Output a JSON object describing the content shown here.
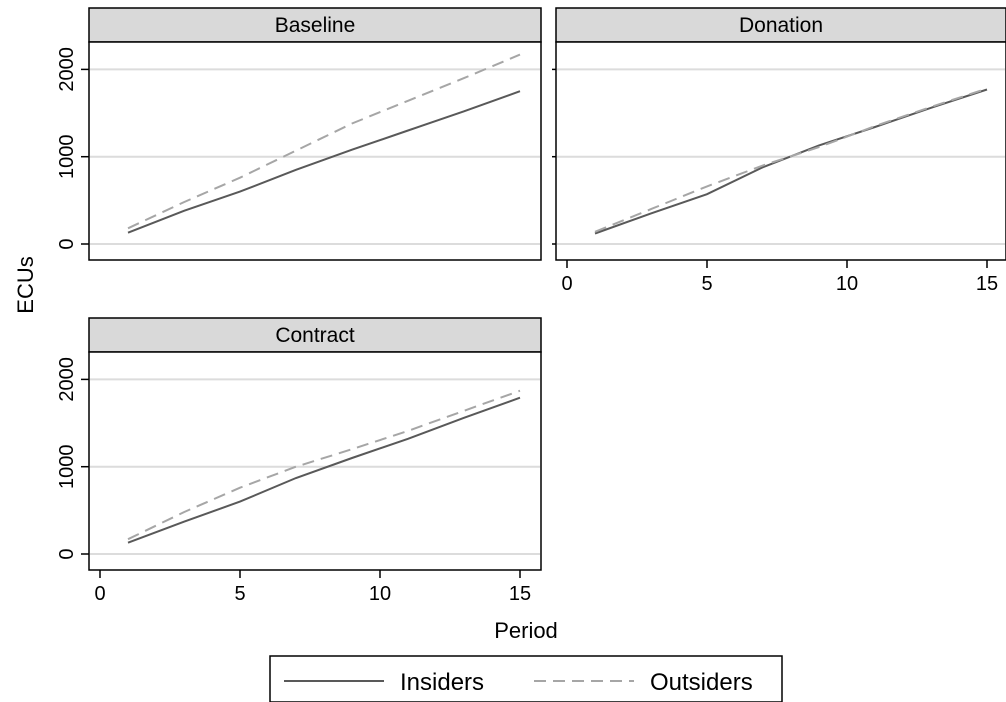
{
  "chart_data": {
    "type": "line",
    "ylabel": "ECUs",
    "xlabel": "Period",
    "xlim": [
      0,
      15
    ],
    "ylim": [
      0,
      2000
    ],
    "xticks": [
      0,
      5,
      10,
      15
    ],
    "yticks": [
      0,
      1000,
      2000
    ],
    "grid": "horizontal",
    "legend_position": "bottom",
    "series_styles": {
      "Insiders": {
        "color": "#595959",
        "dash": "solid"
      },
      "Outsiders": {
        "color": "#a6a6a6",
        "dash": "dashed"
      }
    },
    "panels": [
      {
        "title": "Baseline",
        "series": [
          {
            "name": "Insiders",
            "x": [
              1,
              3,
              5,
              7,
              9,
              11,
              13,
              15
            ],
            "y": [
              130,
              380,
              600,
              850,
              1080,
              1300,
              1520,
              1750
            ]
          },
          {
            "name": "Outsiders",
            "x": [
              1,
              3,
              5,
              7,
              9,
              11,
              13,
              15
            ],
            "y": [
              180,
              480,
              760,
              1070,
              1380,
              1640,
              1900,
              2170
            ]
          }
        ]
      },
      {
        "title": "Donation",
        "series": [
          {
            "name": "Insiders",
            "x": [
              1,
              3,
              5,
              7,
              9,
              11,
              13,
              15
            ],
            "y": [
              120,
              350,
              570,
              880,
              1130,
              1340,
              1560,
              1770
            ]
          },
          {
            "name": "Outsiders",
            "x": [
              1,
              3,
              5,
              7,
              9,
              11,
              13,
              15
            ],
            "y": [
              140,
              400,
              660,
              900,
              1110,
              1350,
              1570,
              1780
            ]
          }
        ]
      },
      {
        "title": "Contract",
        "series": [
          {
            "name": "Insiders",
            "x": [
              1,
              3,
              5,
              7,
              9,
              11,
              13,
              15
            ],
            "y": [
              130,
              370,
              600,
              870,
              1100,
              1320,
              1560,
              1790
            ]
          },
          {
            "name": "Outsiders",
            "x": [
              1,
              3,
              5,
              7,
              9,
              11,
              13,
              15
            ],
            "y": [
              170,
              480,
              760,
              1000,
              1200,
              1410,
              1640,
              1870
            ]
          }
        ]
      }
    ]
  }
}
